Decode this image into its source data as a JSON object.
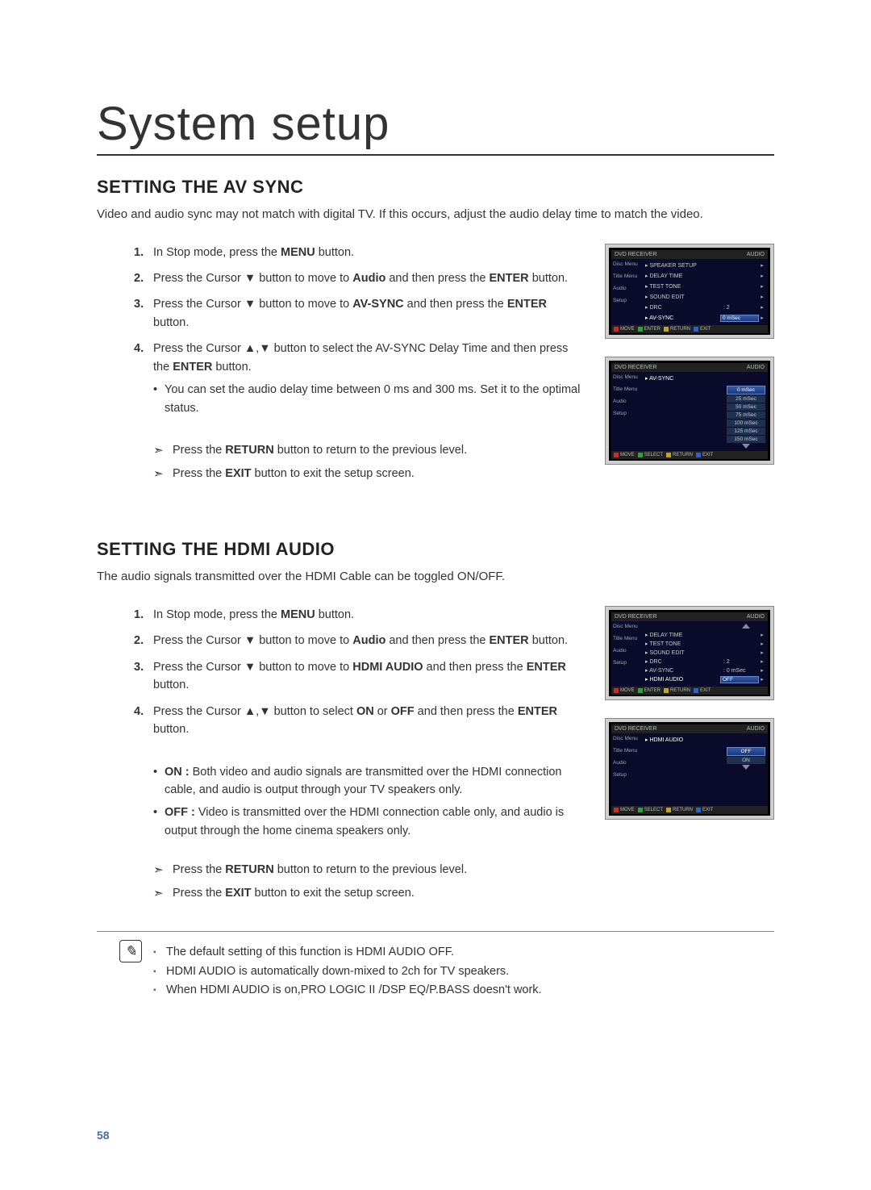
{
  "page_title": "System setup",
  "page_number": "58",
  "section_av": {
    "heading": "SETTING THE AV SYNC",
    "intro": "Video and audio sync may not match with digital TV. If this occurs, adjust the audio delay time to match the video.",
    "steps": [
      {
        "pre": "In Stop mode, press the ",
        "bold1": "MENU",
        "post": " button."
      },
      {
        "pre": "Press the Cursor ▼ button to move to ",
        "bold1": "Audio",
        "mid": " and then press the ",
        "bold2": "ENTER",
        "post": " button."
      },
      {
        "pre": "Press the Cursor ▼ button to move to ",
        "bold1": "AV-SYNC",
        "mid": " and then press the ",
        "bold2": "ENTER",
        "post": " button."
      },
      {
        "pre": "Press the Cursor ▲,▼ button to select the AV-SYNC Delay Time  and then press the ",
        "bold1": "ENTER",
        "post": " button."
      }
    ],
    "sub_bullet": "You can set the audio delay time between 0 ms and 300 ms. Set it to the optimal status.",
    "arrows": [
      {
        "pre": "Press the ",
        "bold": "RETURN",
        "post": " button to return to the previous level."
      },
      {
        "pre": "Press the ",
        "bold": "EXIT",
        "post": " button to exit the setup screen."
      }
    ],
    "osd1": {
      "left_label": "DVD RECEIVER",
      "right_label": "AUDIO",
      "side": [
        "Disc Menu",
        "Title Menu",
        "Audio",
        "Setup"
      ],
      "rows": [
        {
          "label": "SPEAKER SETUP",
          "val": "",
          "arrow": "▸"
        },
        {
          "label": "DELAY TIME",
          "val": "",
          "arrow": "▸"
        },
        {
          "label": "TEST TONE",
          "val": "",
          "arrow": "▸"
        },
        {
          "label": "SOUND EDIT",
          "val": "",
          "arrow": "▸"
        },
        {
          "label": "DRC",
          "val": ": 2",
          "arrow": "▸"
        },
        {
          "label": "AV-SYNC",
          "val": "0 mSec",
          "arrow": "▸",
          "sel": true
        }
      ],
      "btns": [
        "MOVE",
        "ENTER",
        "RETURN",
        "EXIT"
      ]
    },
    "osd2": {
      "left_label": "DVD RECEIVER",
      "right_label": "AUDIO",
      "side": [
        "Disc Menu",
        "Title Menu",
        "Audio",
        "Setup"
      ],
      "title_row": "AV-SYNC",
      "options": [
        "0 mSec",
        "25 mSec",
        "50 mSec",
        "75 mSec",
        "100 mSec",
        "125 mSec",
        "150 mSec"
      ],
      "sel_index": 0,
      "btns": [
        "MOVE",
        "SELECT",
        "RETURN",
        "EXIT"
      ]
    }
  },
  "section_hdmi": {
    "heading": "SETTING THE HDMI AUDIO",
    "intro": "The audio signals transmitted over the HDMI Cable can be toggled ON/OFF.",
    "steps": [
      {
        "pre": "In Stop mode, press the ",
        "bold1": "MENU",
        "post": " button."
      },
      {
        "pre": "Press the Cursor  ▼ button to move to ",
        "bold1": "Audio",
        "mid": " and then press the ",
        "bold2": "ENTER",
        "post": " button."
      },
      {
        "pre": "Press the Cursor ▼ button to move to ",
        "bold1": "HDMI AUDIO",
        "mid": " and then press the ",
        "bold2": "ENTER",
        "post": " button."
      },
      {
        "pre": "Press the Cursor ▲,▼ button to select ",
        "bold1": "ON",
        "mid": " or ",
        "bold2": "OFF",
        "mid2": " and then press the ",
        "bold3": "ENTER",
        "post": " button."
      }
    ],
    "defs": [
      {
        "label": "ON : ",
        "text": "Both video and audio signals are transmitted over the HDMI connection cable, and audio is output through your TV speakers only."
      },
      {
        "label": "OFF : ",
        "text": "Video is transmitted over the HDMI connection cable only, and audio is output through the home cinema speakers only."
      }
    ],
    "arrows": [
      {
        "pre": "Press the ",
        "bold": "RETURN",
        "post": " button to return to the previous level."
      },
      {
        "pre": "Press the ",
        "bold": "EXIT",
        "post": " button to exit the setup screen."
      }
    ],
    "osd1": {
      "left_label": "DVD RECEIVER",
      "right_label": "AUDIO",
      "side": [
        "Disc Menu",
        "Title Menu",
        "Audio",
        "Setup"
      ],
      "rows": [
        {
          "label": "DELAY TIME",
          "val": "",
          "arrow": "▸"
        },
        {
          "label": "TEST TONE",
          "val": "",
          "arrow": "▸"
        },
        {
          "label": "SOUND EDIT",
          "val": "",
          "arrow": "▸"
        },
        {
          "label": "DRC",
          "val": ": 2",
          "arrow": "▸"
        },
        {
          "label": "AV-SYNC",
          "val": ": 0 mSec",
          "arrow": "▸"
        },
        {
          "label": "HDMI AUDIO",
          "val": "OFF",
          "arrow": "▸",
          "sel": true
        }
      ],
      "btns": [
        "MOVE",
        "ENTER",
        "RETURN",
        "EXIT"
      ]
    },
    "osd2": {
      "left_label": "DVD RECEIVER",
      "right_label": "AUDIO",
      "side": [
        "Disc Menu",
        "Title Menu",
        "Audio",
        "Setup"
      ],
      "title_row": "HDMI AUDIO",
      "options": [
        "OFF",
        "ON"
      ],
      "sel_index": 0,
      "btns": [
        "MOVE",
        "SELECT",
        "RETURN",
        "EXIT"
      ]
    }
  },
  "notes": [
    "The default setting of this function is HDMI AUDIO OFF.",
    "HDMI AUDIO is automatically down-mixed to 2ch for TV speakers.",
    "When HDMI AUDIO is on,PRO LOGIC II /DSP EQ/P.BASS doesn't work."
  ],
  "colors": {
    "text": "#333333",
    "rule": "#333333",
    "page_num": "#4a6aa5",
    "osd_bg": "#0a0a2a",
    "osd_sel": "#3a5aa0"
  }
}
